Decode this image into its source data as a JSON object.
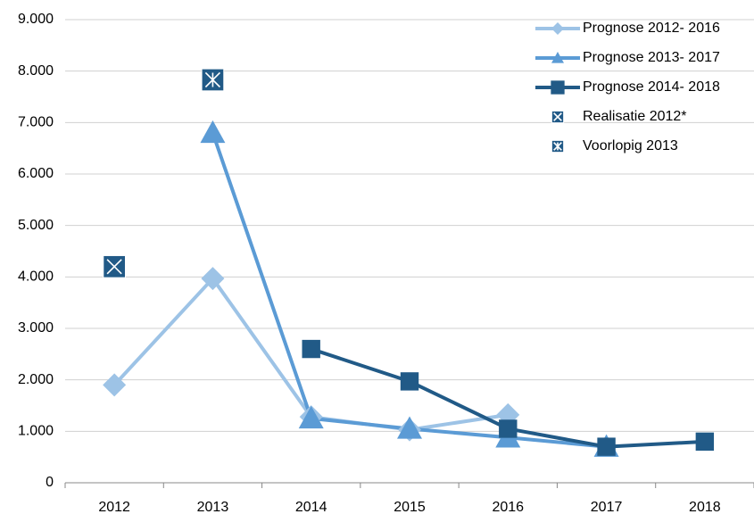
{
  "chart_data": {
    "type": "line",
    "categories": [
      "2012",
      "2013",
      "2014",
      "2015",
      "2016",
      "2017",
      "2018"
    ],
    "series": [
      {
        "name": "Prognose 2012- 2016",
        "color": "#9dc3e6",
        "marker": "diamond",
        "values": [
          1900,
          3970,
          1280,
          1030,
          1320,
          null,
          null
        ]
      },
      {
        "name": "Prognose 2013- 2017",
        "color": "#5b9bd5",
        "marker": "triangle",
        "values": [
          null,
          6800,
          1250,
          1050,
          880,
          700,
          null
        ]
      },
      {
        "name": "Prognose 2014- 2018",
        "color": "#215a87",
        "marker": "square",
        "values": [
          null,
          null,
          2600,
          1970,
          1050,
          700,
          800
        ]
      },
      {
        "name": "Realisatie 2012*",
        "color": "#215a87",
        "marker": "x-box",
        "values": [
          4200,
          null,
          null,
          null,
          null,
          null,
          null
        ]
      },
      {
        "name": "Voorlopig 2013",
        "color": "#215a87",
        "marker": "star-box",
        "values": [
          null,
          7830,
          null,
          null,
          null,
          null,
          null
        ]
      }
    ],
    "ylim": [
      0,
      9000
    ],
    "yticks": [
      0,
      {
        "value": 1000,
        "label": "1.000"
      },
      {
        "value": 2000,
        "label": "2.000"
      },
      {
        "value": 3000,
        "label": "3.000"
      },
      {
        "value": 4000,
        "label": "4.000"
      },
      {
        "value": 5000,
        "label": "5.000"
      },
      {
        "value": 6000,
        "label": "6.000"
      },
      {
        "value": 7000,
        "label": "7.000"
      },
      {
        "value": 8000,
        "label": "8.000"
      },
      {
        "value": 9000,
        "label": "9.000"
      }
    ],
    "grid": true,
    "legend": "top-right"
  }
}
